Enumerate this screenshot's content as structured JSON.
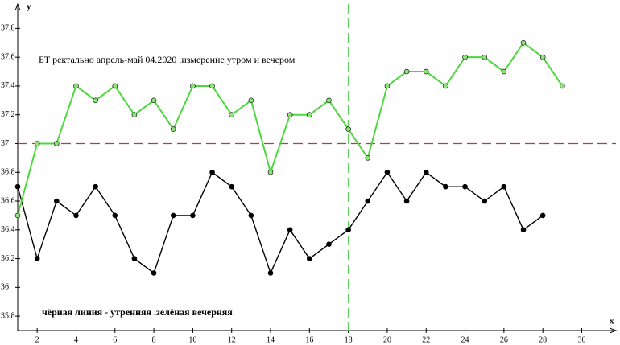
{
  "chart_data": {
    "type": "line",
    "title": "БТ ректально апрель-май 04.2020 .измерение утром и вечером",
    "annotation": "чёрная линия - утренняя .зелёная вечерняя",
    "x_label": "x",
    "y_label": "y",
    "x": [
      1,
      2,
      3,
      4,
      5,
      6,
      7,
      8,
      9,
      10,
      11,
      12,
      13,
      14,
      15,
      16,
      17,
      18,
      19,
      20,
      21,
      22,
      23,
      24,
      25,
      26,
      27,
      28,
      29
    ],
    "series": [
      {
        "color": "#000000",
        "marker": "#000000",
        "values": [
          36.7,
          36.2,
          36.6,
          36.5,
          36.7,
          36.5,
          36.2,
          36.1,
          36.5,
          36.5,
          36.8,
          36.7,
          36.5,
          36.1,
          36.4,
          36.2,
          36.3,
          36.4,
          36.6,
          36.8,
          36.6,
          36.8,
          36.7,
          36.7,
          36.6,
          36.7,
          36.4,
          36.5,
          null
        ]
      },
      {
        "color": "#4cd83c",
        "marker": "#8ee07a",
        "values": [
          36.5,
          37.0,
          37.0,
          37.4,
          37.3,
          37.4,
          37.2,
          37.3,
          37.1,
          37.4,
          37.4,
          37.2,
          37.3,
          36.8,
          37.2,
          37.2,
          37.3,
          37.1,
          36.9,
          37.4,
          37.5,
          37.5,
          37.4,
          37.6,
          37.6,
          37.5,
          37.7,
          37.6,
          37.4
        ]
      }
    ],
    "reference_lines": {
      "y": 37,
      "y_color": "#b04040",
      "x": 18,
      "x_color": "#60d060"
    },
    "xlim": [
      1,
      31.76
    ],
    "xticks": [
      2,
      4,
      6,
      8,
      10,
      12,
      14,
      16,
      18,
      20,
      22,
      24,
      26,
      28,
      30
    ],
    "ylim": [
      35.7,
      37.97
    ],
    "yticks": [
      35.8,
      36,
      36.2,
      36.4,
      36.6,
      36.8,
      37,
      37.2,
      37.4,
      37.6,
      37.8
    ]
  }
}
